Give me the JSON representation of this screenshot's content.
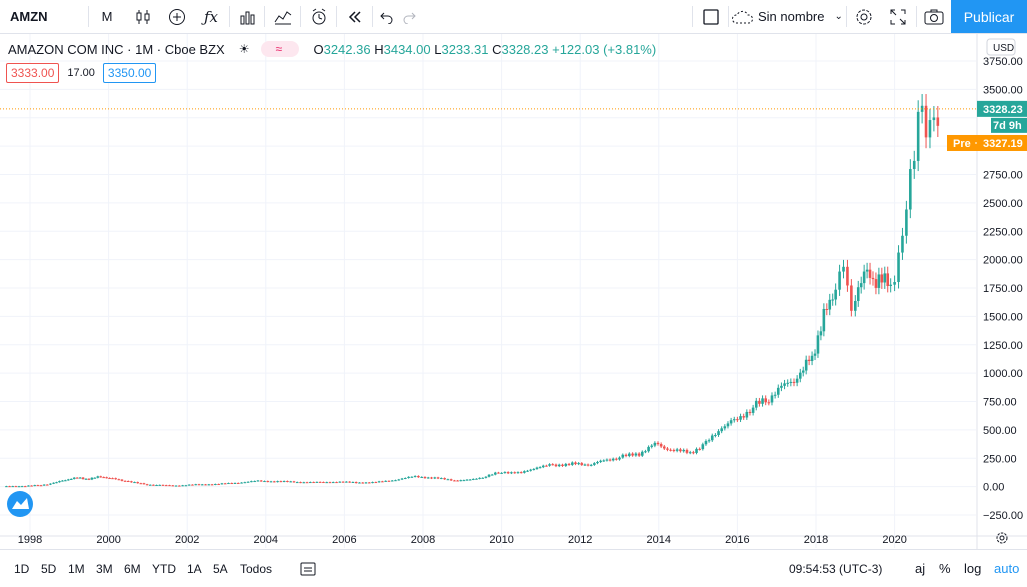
{
  "toolbar": {
    "symbol": "AMZN",
    "interval": "M",
    "layout_name": "Sin nombre",
    "publish": "Publicar",
    "icons": [
      "candles-icon",
      "add-indicator-icon",
      "fx-icon",
      "chart-bars-icon",
      "chart-line-icon",
      "alert-icon",
      "replay-icon",
      "undo-icon",
      "redo-icon",
      "rectangle-icon",
      "cloud-icon",
      "settings-icon",
      "fullscreen-icon",
      "camera-icon"
    ]
  },
  "legend": {
    "title": "AMAZON COM INC · 1M · Cboe BZX",
    "open_label": "O",
    "open": "3242.36",
    "high_label": "H",
    "high": "3434.00",
    "low_label": "L",
    "low": "3233.31",
    "close_label": "C",
    "close": "3328.23",
    "change": "+122.03 (+3.81%)"
  },
  "order_panel": {
    "sell": "3333.00",
    "spread": "17.00",
    "buy": "3350.00"
  },
  "price_scale": {
    "currency": "USD",
    "ticks": [
      "3750.00",
      "3500.00",
      "2750.00",
      "2500.00",
      "2250.00",
      "2000.00",
      "1750.00",
      "1500.00",
      "1250.00",
      "1000.00",
      "750.00",
      "500.00",
      "250.00",
      "0.00",
      "−250.00"
    ],
    "last_price": "3328.23",
    "countdown": "7d 9h",
    "pre_label": "Pre",
    "pre_price": "3327.19"
  },
  "time_scale": {
    "ticks": [
      "1998",
      "2000",
      "2002",
      "2004",
      "2006",
      "2008",
      "2010",
      "2012",
      "2014",
      "2016",
      "2018",
      "2020"
    ]
  },
  "bottom": {
    "ranges": [
      "1D",
      "5D",
      "1M",
      "3M",
      "6M",
      "YTD",
      "1A",
      "5A",
      "Todos"
    ],
    "time": "09:54:53 (UTC-3)",
    "adj": "aj",
    "percent": "%",
    "log": "log",
    "auto": "auto"
  },
  "colors": {
    "up": "#26a69a",
    "down": "#ef5350",
    "accent": "#2196f3",
    "pre": "#ff9800"
  },
  "chart_data": {
    "type": "candlestick",
    "title": "AMAZON COM INC · 1M · Cboe BZX",
    "ylim": [
      -350,
      3800
    ],
    "xlim": [
      1997.3,
      2021.8
    ],
    "x_ticks": [
      1998,
      2000,
      2002,
      2004,
      2006,
      2008,
      2010,
      2012,
      2014,
      2016,
      2018,
      2020
    ],
    "y_ticks": [
      -250,
      0,
      250,
      500,
      750,
      1000,
      1250,
      1500,
      1750,
      2000,
      2250,
      2500,
      2750,
      3500,
      3750
    ],
    "series": [
      {
        "x": 1997.4,
        "v": 2
      },
      {
        "x": 1997.8,
        "v": 4
      },
      {
        "x": 1998.2,
        "v": 10
      },
      {
        "x": 1998.6,
        "v": 30
      },
      {
        "x": 1998.9,
        "v": 60
      },
      {
        "x": 1999.2,
        "v": 80
      },
      {
        "x": 1999.5,
        "v": 65
      },
      {
        "x": 1999.8,
        "v": 90
      },
      {
        "x": 2000.1,
        "v": 70
      },
      {
        "x": 2000.5,
        "v": 45
      },
      {
        "x": 2000.9,
        "v": 20
      },
      {
        "x": 2001.3,
        "v": 12
      },
      {
        "x": 2001.8,
        "v": 10
      },
      {
        "x": 2002.3,
        "v": 18
      },
      {
        "x": 2002.8,
        "v": 22
      },
      {
        "x": 2003.3,
        "v": 35
      },
      {
        "x": 2003.8,
        "v": 50
      },
      {
        "x": 2004.3,
        "v": 45
      },
      {
        "x": 2004.8,
        "v": 40
      },
      {
        "x": 2005.3,
        "v": 38
      },
      {
        "x": 2005.8,
        "v": 42
      },
      {
        "x": 2006.3,
        "v": 35
      },
      {
        "x": 2006.8,
        "v": 38
      },
      {
        "x": 2007.3,
        "v": 60
      },
      {
        "x": 2007.8,
        "v": 90
      },
      {
        "x": 2008.3,
        "v": 75
      },
      {
        "x": 2008.8,
        "v": 55
      },
      {
        "x": 2009.2,
        "v": 60
      },
      {
        "x": 2009.6,
        "v": 90
      },
      {
        "x": 2010.0,
        "v": 130
      },
      {
        "x": 2010.5,
        "v": 120
      },
      {
        "x": 2010.9,
        "v": 170
      },
      {
        "x": 2011.3,
        "v": 190
      },
      {
        "x": 2011.8,
        "v": 200
      },
      {
        "x": 2012.2,
        "v": 190
      },
      {
        "x": 2012.6,
        "v": 230
      },
      {
        "x": 2013.0,
        "v": 260
      },
      {
        "x": 2013.5,
        "v": 290
      },
      {
        "x": 2013.9,
        "v": 380
      },
      {
        "x": 2014.3,
        "v": 320
      },
      {
        "x": 2014.8,
        "v": 300
      },
      {
        "x": 2015.2,
        "v": 380
      },
      {
        "x": 2015.6,
        "v": 520
      },
      {
        "x": 2016.0,
        "v": 600
      },
      {
        "x": 2016.4,
        "v": 700
      },
      {
        "x": 2016.8,
        "v": 780
      },
      {
        "x": 2017.2,
        "v": 900
      },
      {
        "x": 2017.6,
        "v": 980
      },
      {
        "x": 2017.9,
        "v": 1150
      },
      {
        "x": 2018.2,
        "v": 1500
      },
      {
        "x": 2018.5,
        "v": 1750
      },
      {
        "x": 2018.7,
        "v": 2000
      },
      {
        "x": 2018.9,
        "v": 1550
      },
      {
        "x": 2019.0,
        "v": 1700
      },
      {
        "x": 2019.3,
        "v": 1900
      },
      {
        "x": 2019.6,
        "v": 1800
      },
      {
        "x": 2019.9,
        "v": 1780
      },
      {
        "x": 2020.1,
        "v": 2000
      },
      {
        "x": 2020.3,
        "v": 2450
      },
      {
        "x": 2020.5,
        "v": 3000
      },
      {
        "x": 2020.6,
        "v": 3300
      },
      {
        "x": 2020.8,
        "v": 3150
      },
      {
        "x": 2021.0,
        "v": 3250
      },
      {
        "x": 2021.2,
        "v": 3328
      }
    ]
  }
}
